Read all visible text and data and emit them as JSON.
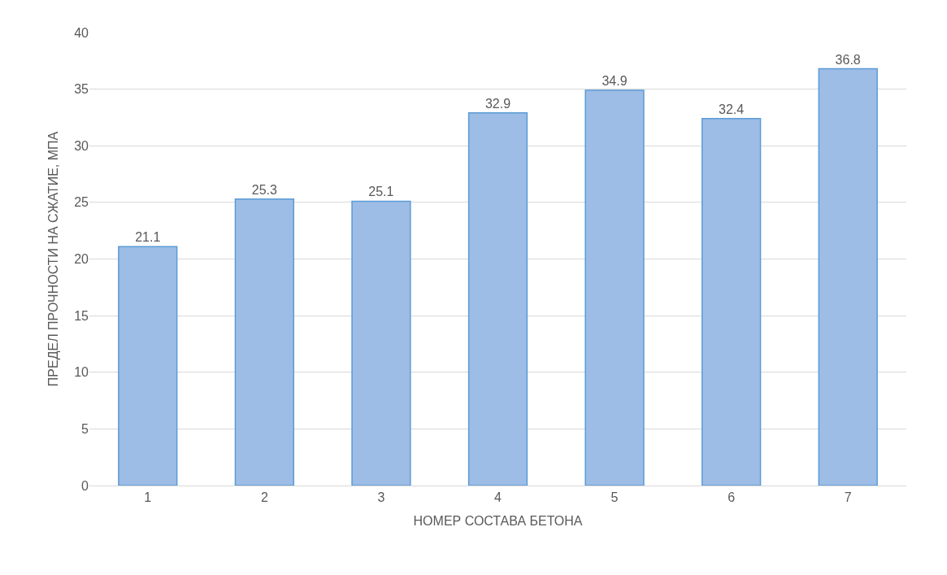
{
  "chart_data": {
    "type": "bar",
    "xlabel": "НОМЕР СОСТАВА БЕТОНА",
    "ylabel": "ПРЕДЕЛ ПРОЧНОСТИ НА СЖАТИЕ, МПА",
    "categories": [
      "1",
      "2",
      "3",
      "4",
      "5",
      "6",
      "7"
    ],
    "values": [
      21.1,
      25.3,
      25.1,
      32.9,
      34.9,
      32.4,
      36.8
    ],
    "color": "#9dbde6",
    "ylim": [
      0,
      40
    ],
    "yticks": [
      0,
      5,
      10,
      15,
      20,
      25,
      30,
      35,
      40
    ],
    "grid": "y",
    "data_labels": true
  }
}
